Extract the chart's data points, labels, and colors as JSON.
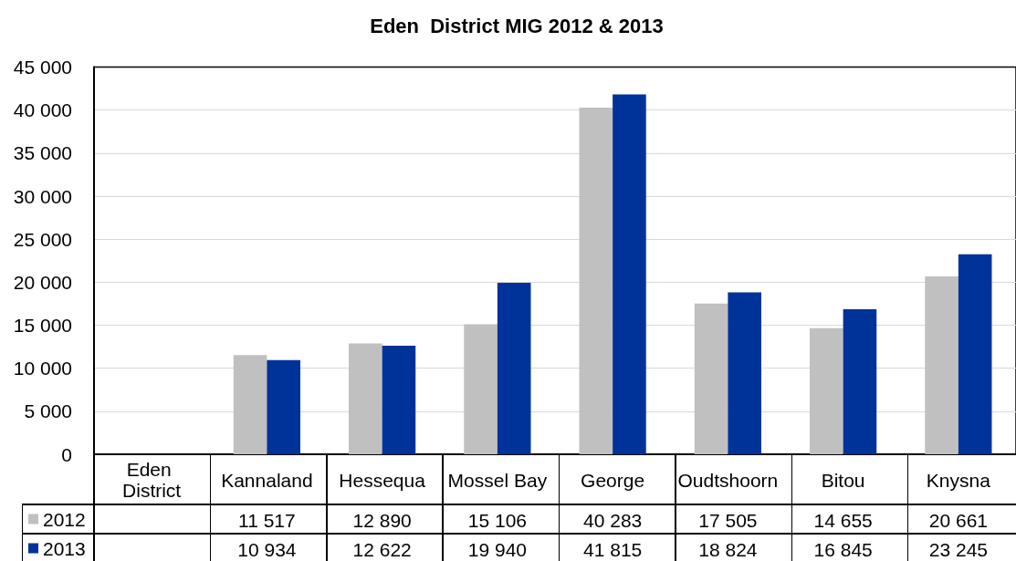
{
  "chart_data": {
    "type": "bar",
    "title": "Eden  District MIG 2012 & 2013",
    "categories": [
      "Eden District",
      "Kannaland",
      "Hessequa",
      "Mossel Bay",
      "George",
      "Oudtshoorn",
      "Bitou",
      "Knysna"
    ],
    "series": [
      {
        "name": "2012",
        "color": "#c0c0c0",
        "values": [
          null,
          11517,
          12890,
          15106,
          40283,
          17505,
          14655,
          20661
        ],
        "value_labels": [
          null,
          "11 517",
          "12 890",
          "15 106",
          "40 283",
          "17 505",
          "14 655",
          "20 661"
        ]
      },
      {
        "name": "2013",
        "color": "#003399",
        "values": [
          null,
          10934,
          12622,
          19940,
          41815,
          18824,
          16845,
          23245
        ],
        "value_labels": [
          null,
          "10 934",
          "12 622",
          "19 940",
          "41 815",
          "18 824",
          "16 845",
          "23 245"
        ]
      }
    ],
    "ylim": [
      0,
      45000
    ],
    "yticks": [
      0,
      {
        "value": 5000,
        "label": "5 000"
      },
      {
        "value": 10000,
        "label": "10 000"
      },
      {
        "value": 15000,
        "label": "15 000"
      },
      {
        "value": 20000,
        "label": "20 000"
      },
      {
        "value": 25000,
        "label": "25 000"
      },
      {
        "value": 30000,
        "label": "30 000"
      },
      {
        "value": 35000,
        "label": "35 000"
      },
      {
        "value": 40000,
        "label": "40 000"
      },
      {
        "value": 45000,
        "label": "45 000"
      }
    ],
    "grid": "y",
    "legend": "bottom left"
  }
}
